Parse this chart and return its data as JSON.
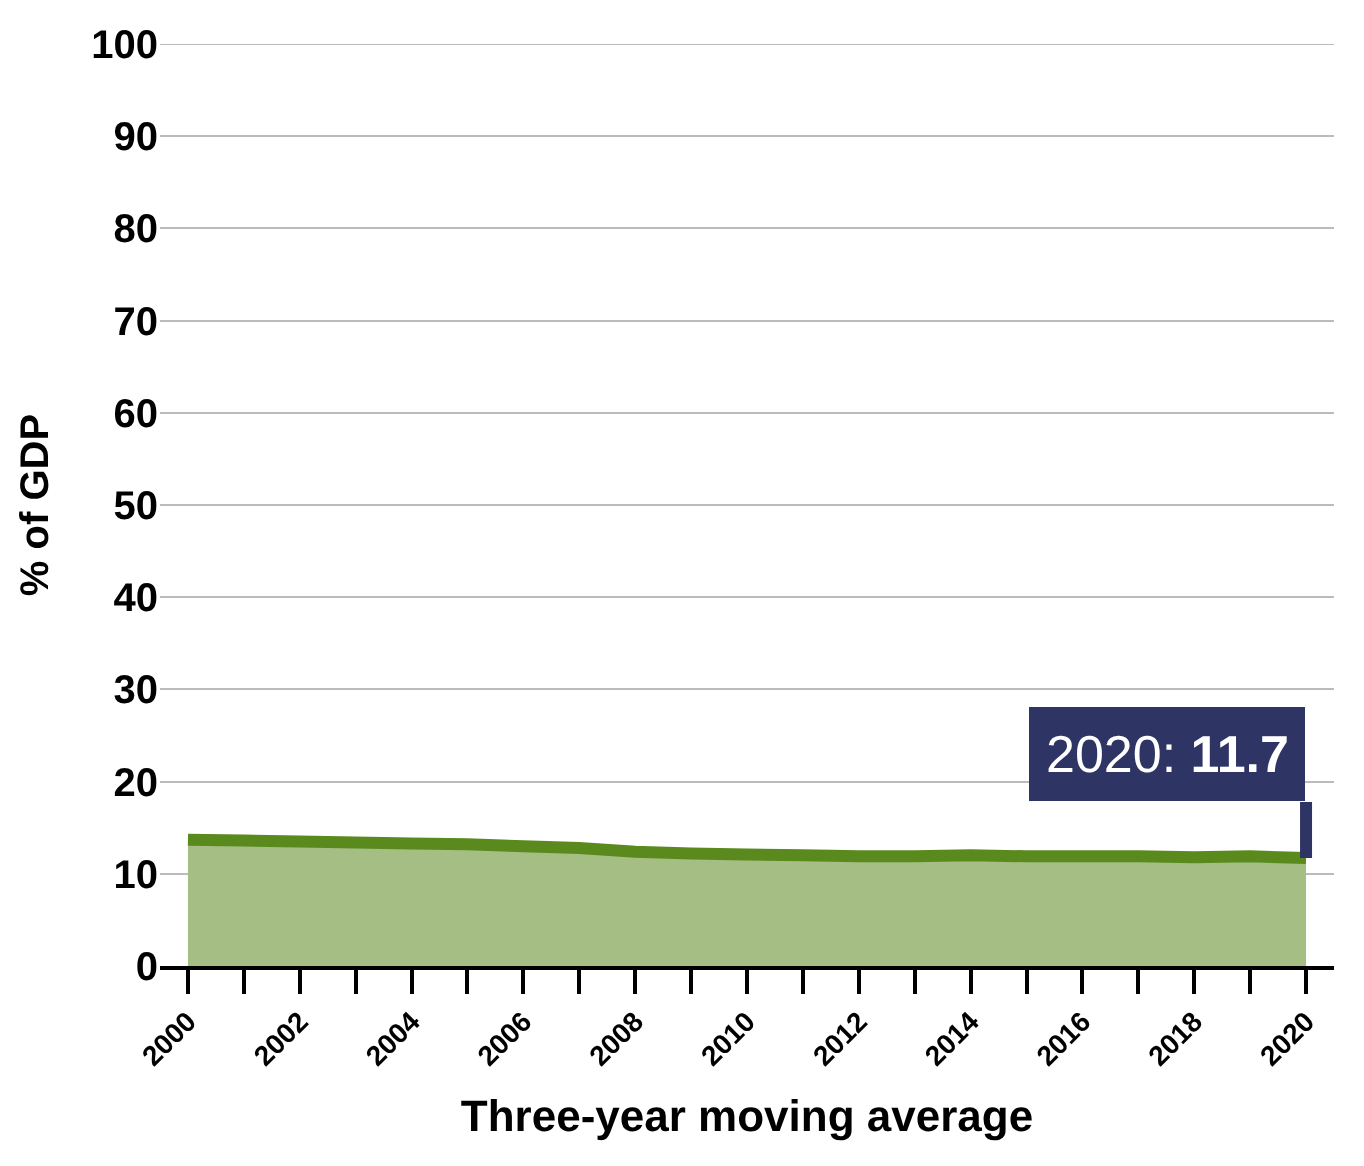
{
  "chart_data": {
    "type": "area",
    "ylabel": "% of GDP",
    "xlabel": "Three-year moving average",
    "x": [
      2000,
      2001,
      2002,
      2003,
      2004,
      2005,
      2006,
      2007,
      2008,
      2009,
      2010,
      2011,
      2012,
      2013,
      2014,
      2015,
      2016,
      2017,
      2018,
      2019,
      2020
    ],
    "series": [
      {
        "color": "#5a8a1e",
        "values": [
          13.7,
          13.6,
          13.5,
          13.4,
          13.3,
          13.2,
          13.0,
          12.8,
          12.4,
          12.2,
          12.1,
          12.0,
          11.9,
          11.9,
          12.0,
          11.9,
          11.9,
          11.9,
          11.8,
          11.9,
          11.7
        ]
      }
    ],
    "xlim": [
      1999.5,
      2020.5
    ],
    "xticks": [
      2000,
      {
        "value": 2001,
        "label": null
      },
      2002,
      {
        "value": 2003,
        "label": null
      },
      2004,
      {
        "value": 2005,
        "label": null
      },
      2006,
      {
        "value": 2007,
        "label": null
      },
      2008,
      {
        "value": 2009,
        "label": null
      },
      2010,
      {
        "value": 2011,
        "label": null
      },
      2012,
      {
        "value": 2013,
        "label": null
      },
      2014,
      {
        "value": 2015,
        "label": null
      },
      2016,
      {
        "value": 2017,
        "label": null
      },
      2018,
      {
        "value": 2019,
        "label": null
      },
      2020
    ],
    "ylim": [
      0,
      100
    ],
    "yticks": [
      0,
      10,
      20,
      30,
      40,
      50,
      60,
      70,
      80,
      90,
      100
    ],
    "grid": "y",
    "annotations": [
      {
        "text": "2020: 11.7",
        "x": 2020,
        "y": 11.7
      }
    ]
  }
}
